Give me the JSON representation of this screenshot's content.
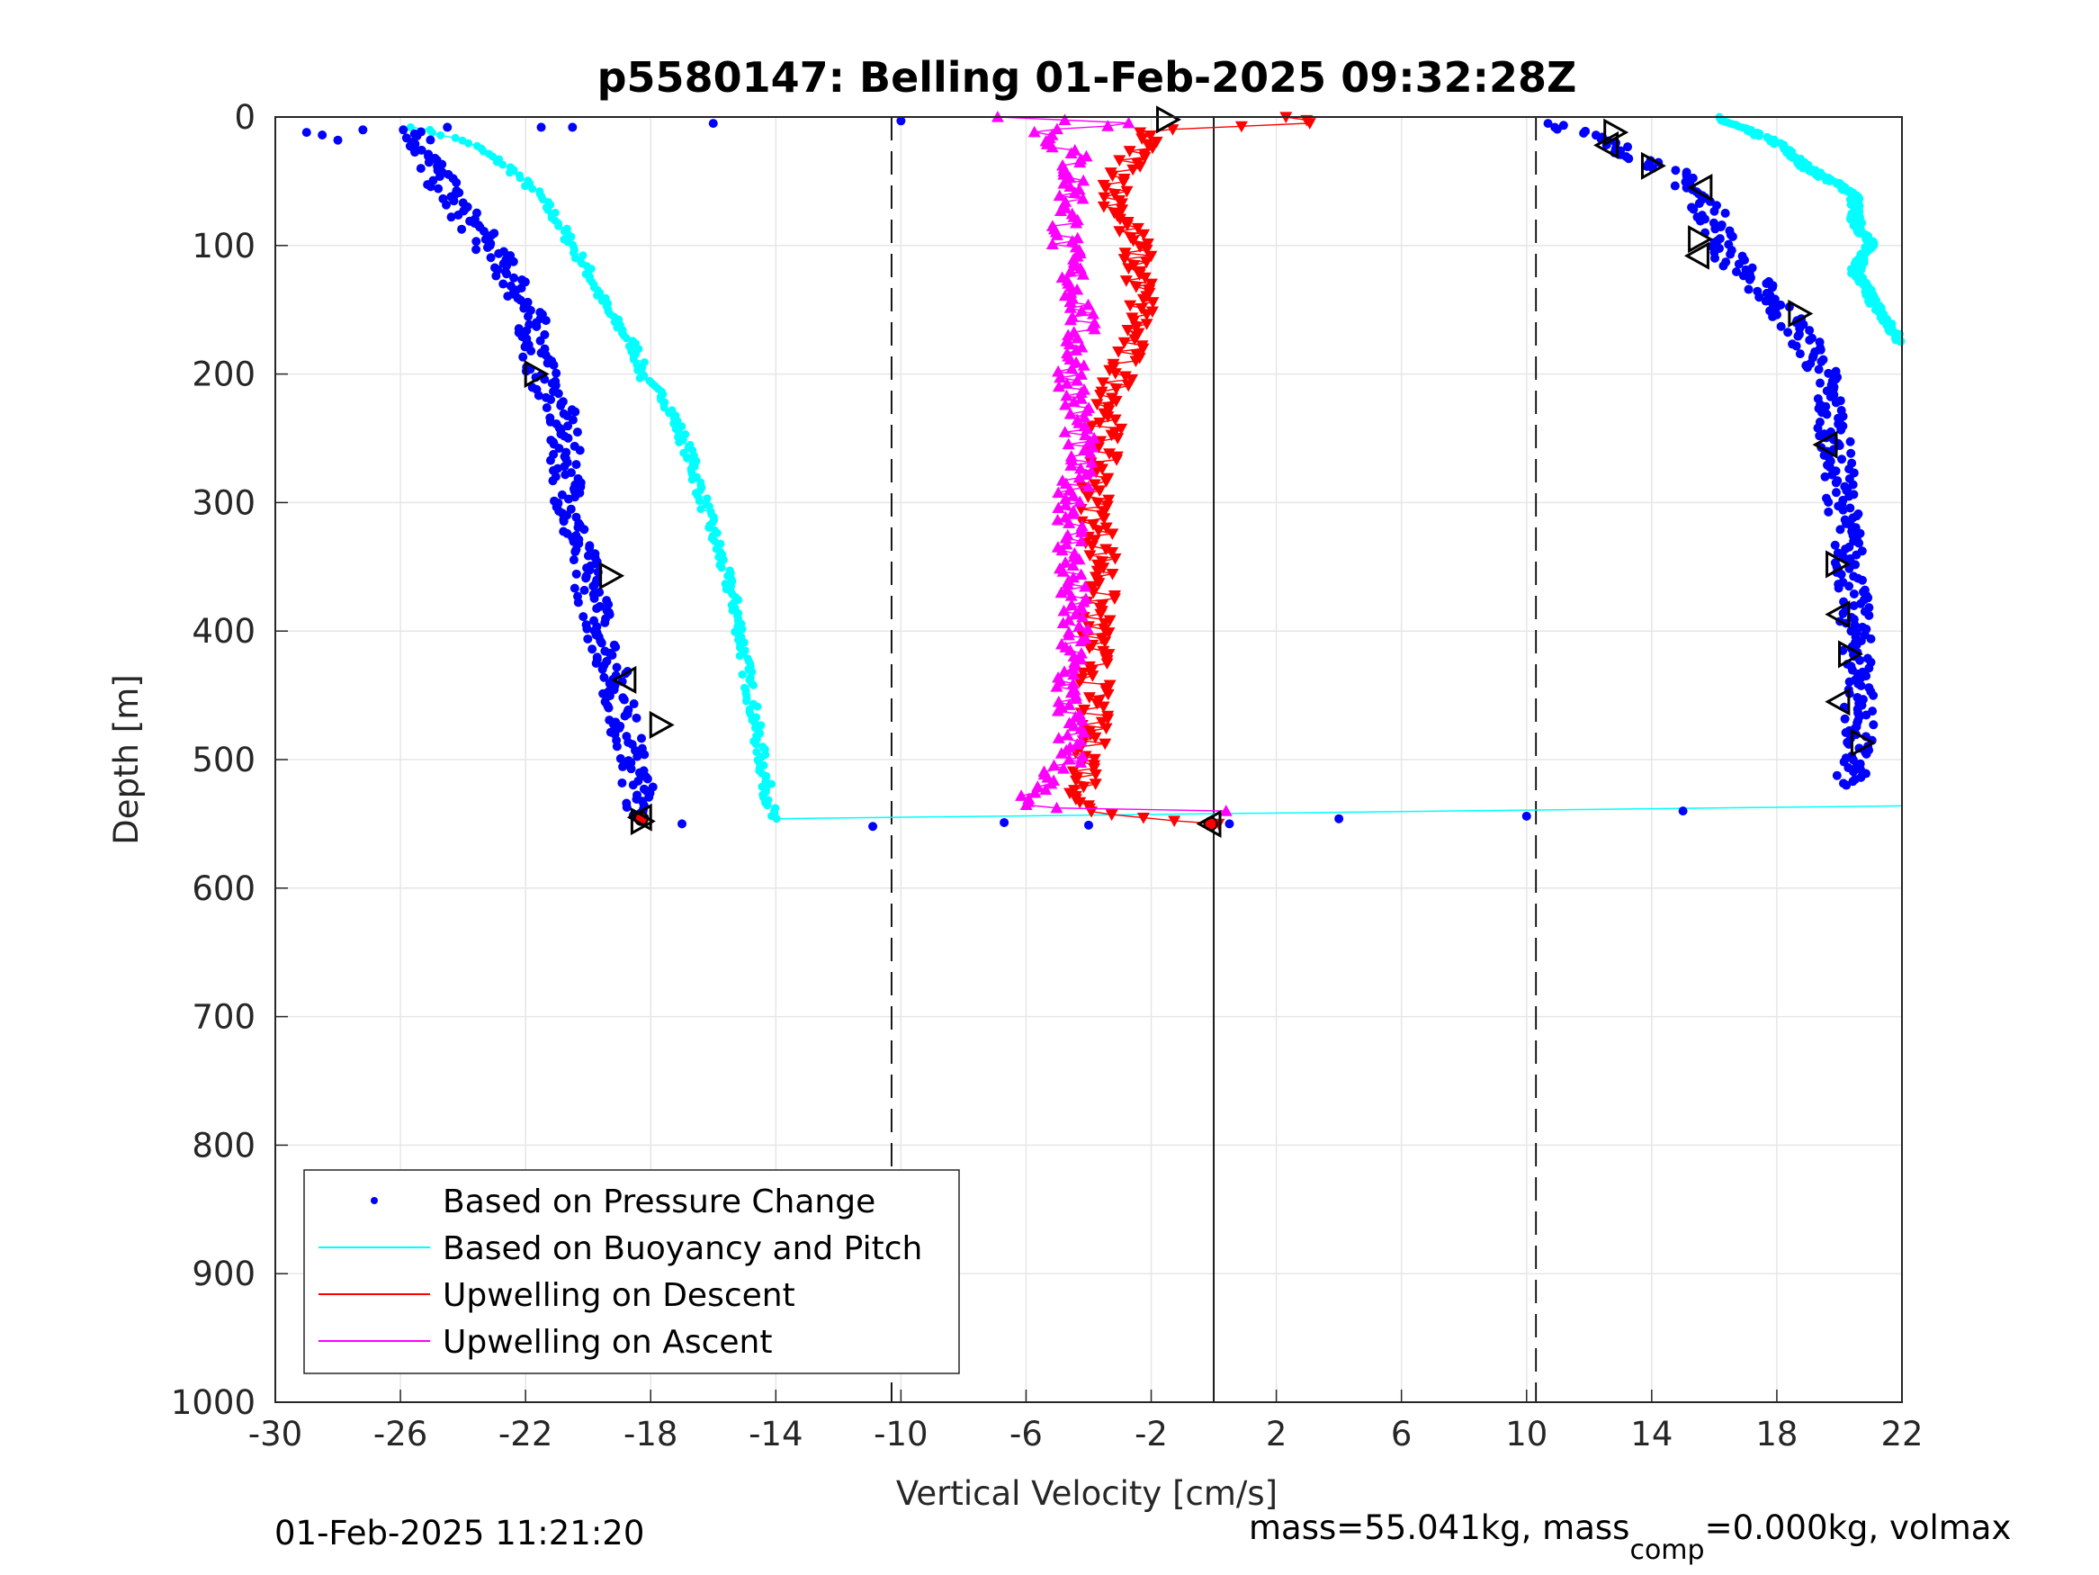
{
  "chart_data": {
    "type": "scatter",
    "title": "p5580147: Belling 01-Feb-2025 09:32:28Z",
    "xlabel": "Vertical Velocity [cm/s]",
    "ylabel": "Depth [m]",
    "xlim": [
      -30,
      22
    ],
    "ylim": [
      0,
      1000
    ],
    "y_reversed": true,
    "grid": true,
    "xticks": [
      "-30",
      "-26",
      "-22",
      "-18",
      "-14",
      "-10",
      "-6",
      "-2",
      "2",
      "6",
      "10",
      "14",
      "18",
      "22"
    ],
    "yticks": [
      "0",
      "100",
      "200",
      "300",
      "400",
      "500",
      "600",
      "700",
      "800",
      "900",
      "1000"
    ],
    "reference_lines": [
      {
        "x": -10.3,
        "style": "dashed",
        "color": "#000000"
      },
      {
        "x": 0,
        "style": "solid",
        "color": "#000000"
      },
      {
        "x": 10.3,
        "style": "dashed",
        "color": "#000000"
      }
    ],
    "legend_position": "bottom-left",
    "series": [
      {
        "name": "Based on Pressure Change",
        "color": "#0000ff",
        "marker": "dot",
        "descent": {
          "depth": [
            10,
            30,
            60,
            90,
            130,
            160,
            200,
            230,
            270,
            320,
            360,
            400,
            440,
            480,
            520,
            545
          ],
          "velocity": [
            -25.5,
            -25.2,
            -24.5,
            -23.5,
            -22.3,
            -21.8,
            -21.5,
            -20.9,
            -20.7,
            -20.5,
            -20,
            -19.6,
            -19.1,
            -18.8,
            -18.4,
            -18.2
          ]
        },
        "ascent": {
          "depth": [
            5,
            20,
            40,
            60,
            80,
            110,
            140,
            170,
            200,
            240,
            280,
            320,
            360,
            400,
            440,
            480,
            520
          ],
          "velocity": [
            11,
            12.5,
            14.5,
            15.5,
            16,
            16.5,
            17.8,
            18.8,
            19.5,
            19.8,
            20,
            20.2,
            20.4,
            20.5,
            20.7,
            20.6,
            20.3
          ]
        },
        "outliers": {
          "depth": [
            12,
            14,
            18,
            10,
            8,
            5,
            8,
            3,
            8,
            550,
            552,
            549,
            551,
            550,
            546,
            544,
            540
          ],
          "velocity": [
            -29,
            -28.5,
            -28,
            -27.2,
            -24.5,
            -16,
            -20.5,
            -10,
            -21.5,
            -17,
            -10.9,
            -6.7,
            -4,
            0.5,
            4,
            10,
            15
          ]
        }
      },
      {
        "name": "Based on Buoyancy and Pitch",
        "color": "#00ffff",
        "marker": "dot-line",
        "descent": {
          "depth": [
            8,
            20,
            40,
            60,
            80,
            100,
            120,
            150,
            180,
            205,
            220,
            260,
            300,
            340,
            380,
            420,
            450,
            480,
            520,
            546
          ],
          "velocity": [
            -25.5,
            -23.8,
            -22.5,
            -21.6,
            -21,
            -20.5,
            -20,
            -19.4,
            -18.5,
            -18.2,
            -17.5,
            -16.8,
            -16.3,
            -15.8,
            -15.3,
            -15,
            -14.8,
            -14.6,
            -14.3,
            -14.1
          ]
        },
        "ascent": {
          "depth": [
            0,
            20,
            40,
            60,
            80,
            100,
            120,
            140,
            160,
            175
          ],
          "velocity": [
            16,
            18,
            19,
            20.5,
            20.5,
            21,
            20.5,
            21,
            21.5,
            22
          ]
        },
        "surface_link": {
          "depth": [
            546,
            536
          ],
          "velocity": [
            -14.1,
            22
          ]
        }
      },
      {
        "name": "Upwelling on Descent",
        "color": "#ff0000",
        "marker": "triangle-down",
        "depth": [
          0,
          5,
          10,
          30,
          60,
          100,
          150,
          200,
          250,
          300,
          350,
          400,
          450,
          500,
          540,
          550
        ],
        "velocity": [
          2,
          3,
          -2,
          -2.5,
          -3.2,
          -2.5,
          -2.3,
          -3,
          -3.5,
          -3.8,
          -3.5,
          -3.8,
          -3.8,
          -4,
          -4.2,
          0
        ]
      },
      {
        "name": "Upwelling on Ascent",
        "color": "#ff00ff",
        "marker": "triangle-up",
        "depth": [
          0,
          5,
          10,
          30,
          60,
          100,
          150,
          200,
          250,
          300,
          350,
          400,
          450,
          500,
          537,
          540
        ],
        "velocity": [
          -6.5,
          -2,
          -5.5,
          -4.5,
          -4.5,
          -4.8,
          -4.2,
          -4.5,
          -4.3,
          -4.5,
          -4.6,
          -4.5,
          -4.7,
          -4.5,
          -6.5,
          0
        ]
      }
    ],
    "open_markers": {
      "color": "#000000",
      "right_pointing": [
        {
          "velocity": -21.7,
          "depth": 200
        },
        {
          "velocity": -19.3,
          "depth": 357
        },
        {
          "velocity": -17.7,
          "depth": 473
        },
        {
          "velocity": -18.3,
          "depth": 548
        },
        {
          "velocity": -1.5,
          "depth": 2
        },
        {
          "velocity": 12.8,
          "depth": 12
        },
        {
          "velocity": 14,
          "depth": 38
        },
        {
          "velocity": 15.5,
          "depth": 95
        },
        {
          "velocity": 18.7,
          "depth": 153
        },
        {
          "velocity": 19.9,
          "depth": 348
        },
        {
          "velocity": 20.3,
          "depth": 418
        },
        {
          "velocity": 20.7,
          "depth": 487
        }
      ],
      "left_pointing": [
        {
          "velocity": -18.8,
          "depth": 438
        },
        {
          "velocity": -18.3,
          "depth": 545
        },
        {
          "velocity": 12.6,
          "depth": 22
        },
        {
          "velocity": 15.6,
          "depth": 55
        },
        {
          "velocity": 15.5,
          "depth": 108
        },
        {
          "velocity": 19.6,
          "depth": 255
        },
        {
          "velocity": 20,
          "depth": 387
        },
        {
          "velocity": 20,
          "depth": 455
        },
        {
          "velocity": -0.1,
          "depth": 550
        }
      ],
      "filled_red": [
        {
          "velocity": -18.3,
          "depth": 546
        },
        {
          "velocity": -0.1,
          "depth": 550
        }
      ]
    }
  },
  "footer": {
    "timestamp": "01-Feb-2025 11:21:20",
    "mass_text": "mass=55.041kg, mass",
    "mass_sub": "comp",
    "mass_rest": "=0.000kg, volmax"
  }
}
